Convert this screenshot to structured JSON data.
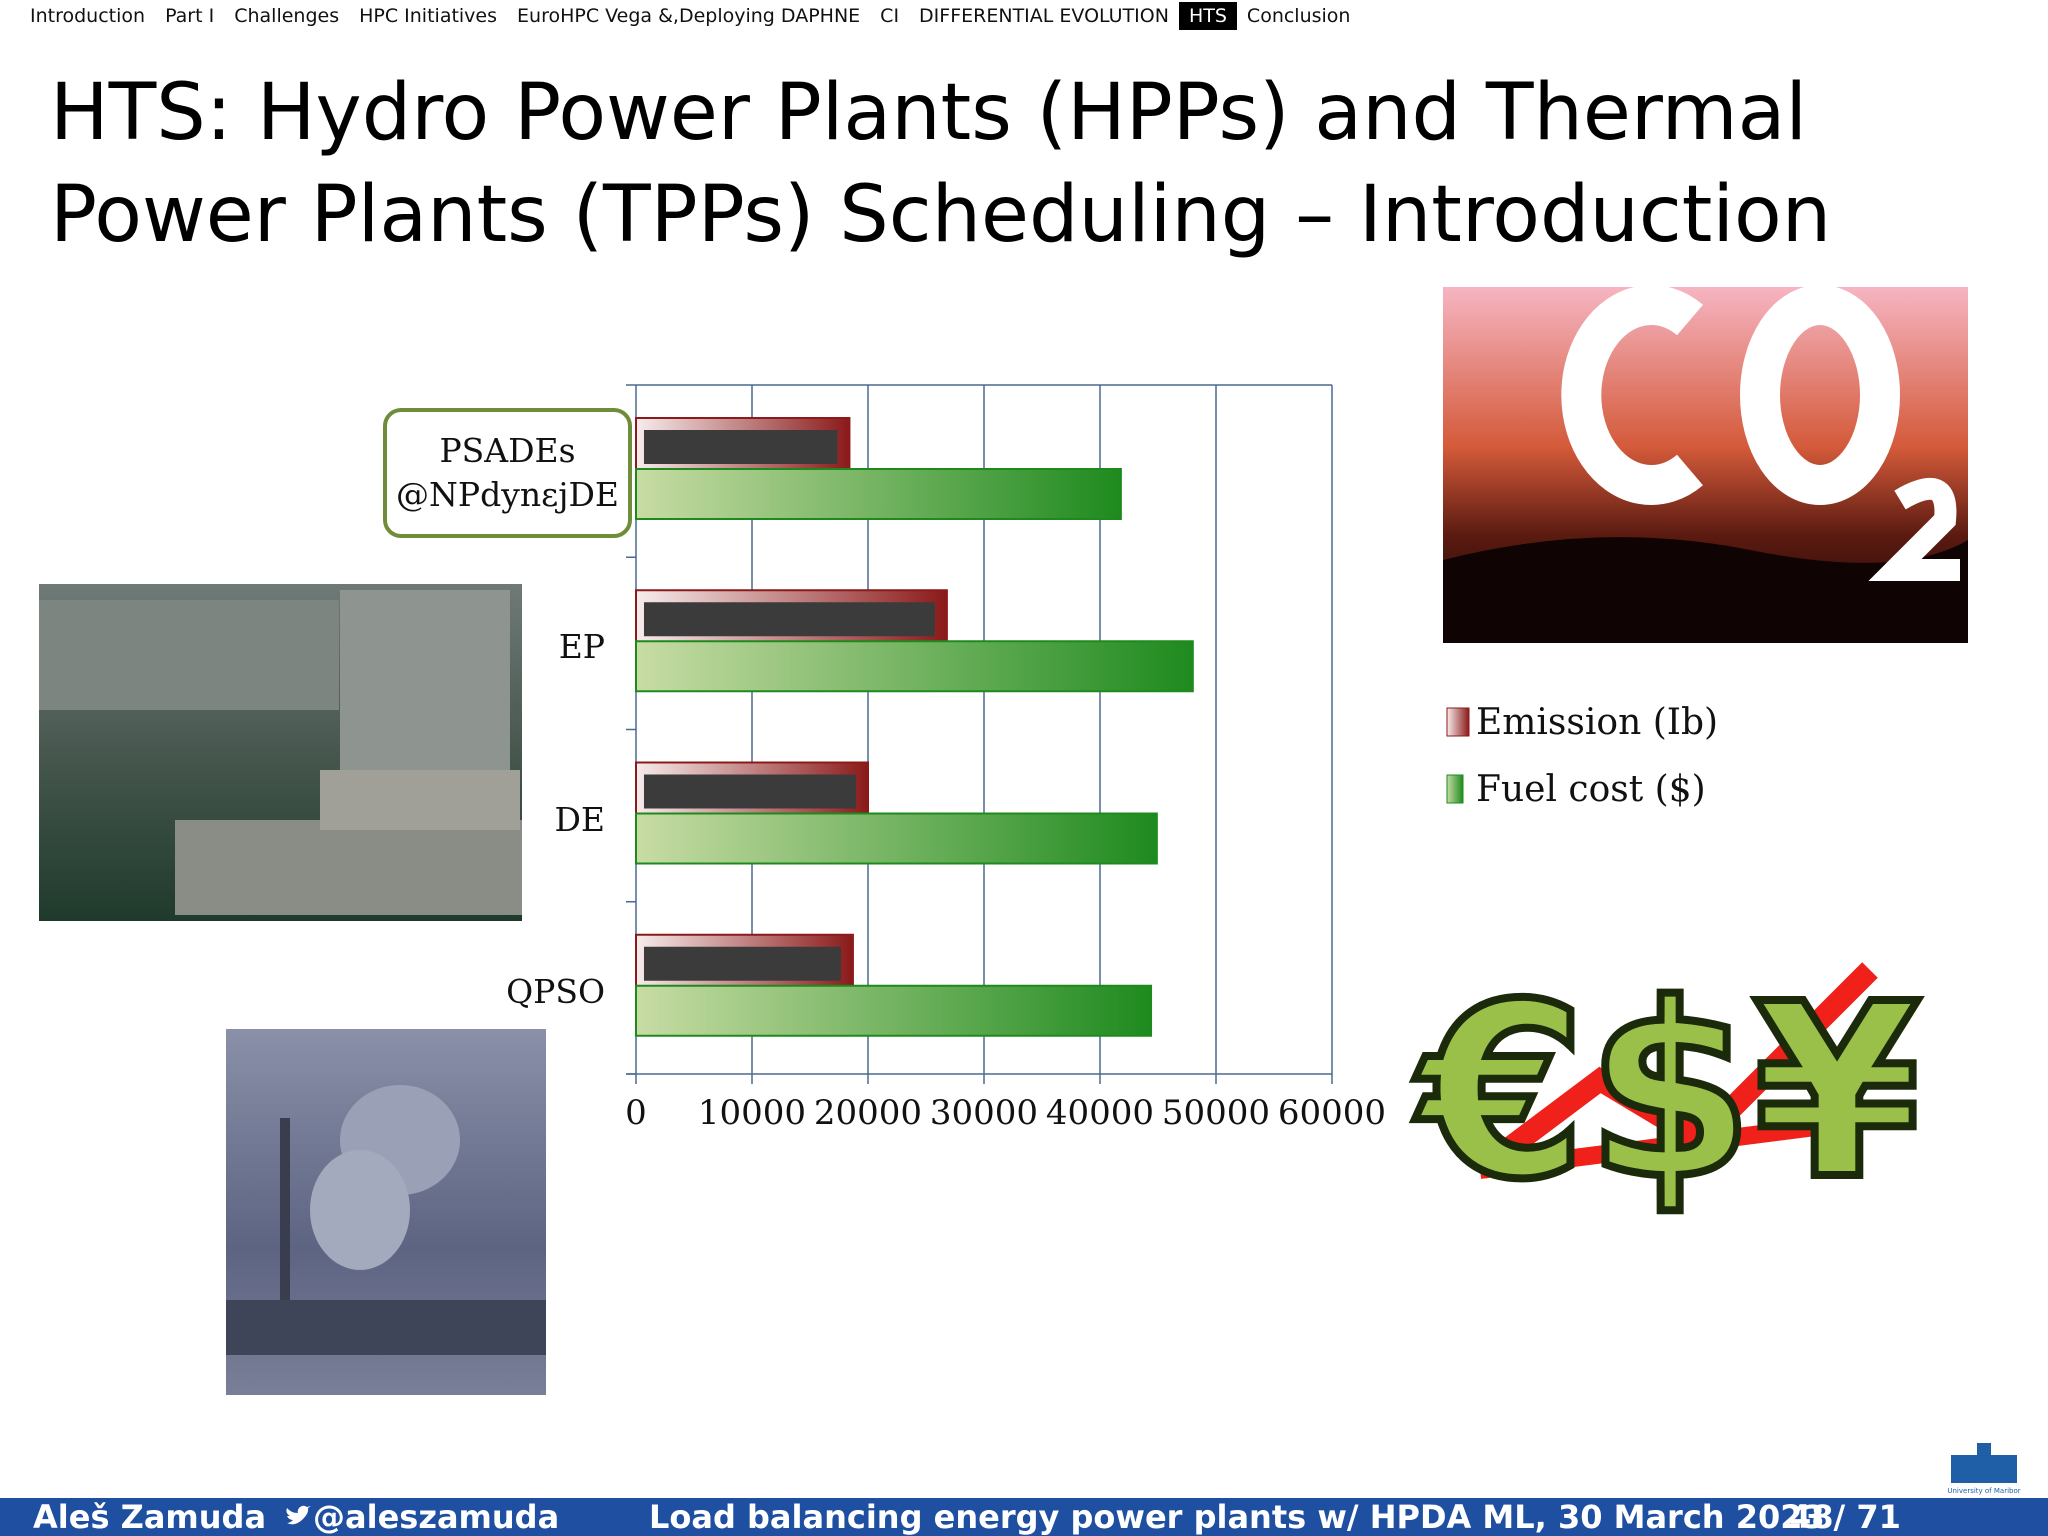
{
  "nav": {
    "items": [
      "Introduction",
      "Part I",
      "Challenges",
      "HPC Initiatives",
      "EuroHPC Vega &,Deploying DAPHNE",
      "CI",
      "DIFFERENTIAL EVOLUTION",
      "HTS",
      "Conclusion"
    ],
    "active": 7
  },
  "title": "HTS: Hydro Power Plants (HPPs) and Thermal Power Plants (TPPs) Scheduling – Introduction",
  "chart_data": {
    "type": "hbar",
    "categories": [
      "PSADEs @NPdynεjDE",
      "EP",
      "DE",
      "QPSO"
    ],
    "series": [
      {
        "name": "Emission (Ib)",
        "color": "#8b1a1a",
        "values": [
          18400,
          26800,
          20000,
          18700
        ]
      },
      {
        "name": "Fuel cost ($)",
        "color": "#1e8a1e",
        "values": [
          41800,
          48000,
          44900,
          44400
        ]
      }
    ],
    "xlim": [
      0,
      60000
    ],
    "xticks": [
      0,
      10000,
      20000,
      30000,
      40000,
      50000,
      60000
    ],
    "grid": true
  },
  "footer": {
    "author": "Aleš Zamuda",
    "handle": "@aleszamuda",
    "talk": "Load balancing energy power plants w/ HPDA ML, 30 March 2023",
    "page": "48/ 71",
    "logo": "University of Maribor"
  }
}
